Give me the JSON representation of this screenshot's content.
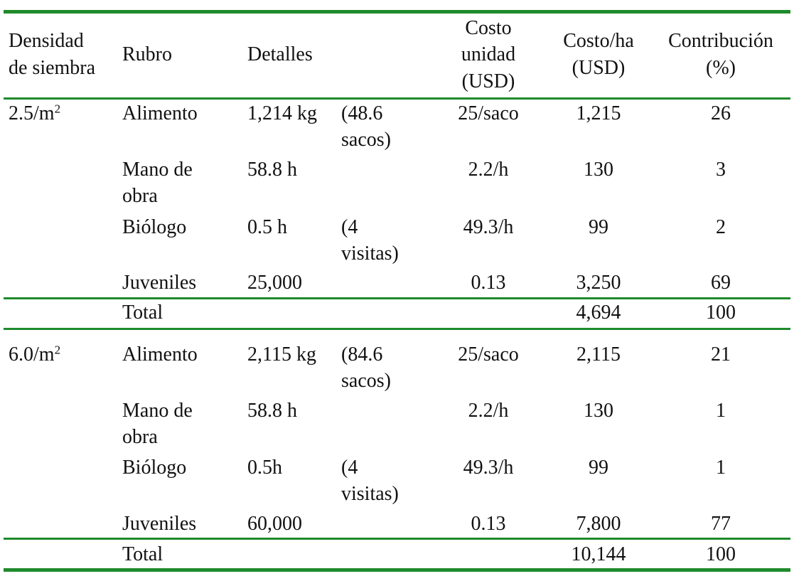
{
  "table": {
    "headers": {
      "density": [
        "Densidad",
        "de siembra"
      ],
      "item": "Rubro",
      "details": "Detalles",
      "unit_cost": [
        "Costo",
        "unidad",
        "(USD)"
      ],
      "cost_ha": [
        "Costo/ha",
        "(USD)"
      ],
      "contribution": [
        "Contribución",
        "(%)"
      ]
    },
    "groups": [
      {
        "density_value": "2.5/m",
        "density_exp": "2",
        "rows": [
          {
            "item": [
              "Alimento"
            ],
            "detail": "1,214 kg",
            "note": [
              "(48.6",
              "sacos)"
            ],
            "unit_cost": "25/saco",
            "cost_ha": "1,215",
            "contribution": "26"
          },
          {
            "item": [
              "Mano de",
              "obra"
            ],
            "detail": "58.8 h",
            "note": [],
            "unit_cost": "2.2/h",
            "cost_ha": "130",
            "contribution": "3"
          },
          {
            "item": [
              "Biólogo"
            ],
            "detail": "0.5 h",
            "note": [
              "(4",
              "visitas)"
            ],
            "unit_cost": "49.3/h",
            "cost_ha": "99",
            "contribution": "2"
          },
          {
            "item": [
              "Juveniles"
            ],
            "detail": "25,000",
            "note": [],
            "unit_cost": "0.13",
            "cost_ha": "3,250",
            "contribution": "69"
          }
        ],
        "total": {
          "label": "Total",
          "cost_ha": "4,694",
          "contribution": "100"
        }
      },
      {
        "density_value": "6.0/m",
        "density_exp": "2",
        "rows": [
          {
            "item": [
              "Alimento"
            ],
            "detail": "2,115 kg",
            "note": [
              "(84.6",
              "sacos)"
            ],
            "unit_cost": "25/saco",
            "cost_ha": "2,115",
            "contribution": "21"
          },
          {
            "item": [
              "Mano de",
              "obra"
            ],
            "detail": "58.8 h",
            "note": [],
            "unit_cost": "2.2/h",
            "cost_ha": "130",
            "contribution": "1"
          },
          {
            "item": [
              "Biólogo"
            ],
            "detail": "0.5h",
            "note": [
              "(4",
              "visitas)"
            ],
            "unit_cost": "49.3/h",
            "cost_ha": "99",
            "contribution": "1"
          },
          {
            "item": [
              "Juveniles"
            ],
            "detail": "60,000",
            "note": [],
            "unit_cost": "0.13",
            "cost_ha": "7,800",
            "contribution": "77"
          }
        ],
        "total": {
          "label": "Total",
          "cost_ha": "10,144",
          "contribution": "100"
        }
      }
    ],
    "rule_color": "#1f8a2b"
  }
}
